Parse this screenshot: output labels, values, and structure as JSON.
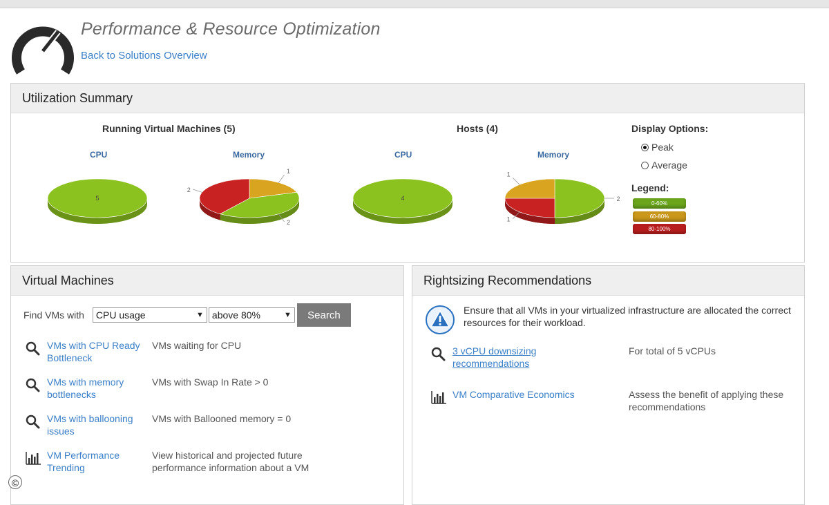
{
  "header": {
    "title": "Performance & Resource Optimization",
    "back_link": "Back to Solutions Overview"
  },
  "utilization": {
    "title": "Utilization Summary",
    "vm_group_title": "Running Virtual Machines (5)",
    "host_group_title": "Hosts (4)",
    "display_options_title": "Display Options:",
    "options": [
      {
        "label": "Peak",
        "checked": true
      },
      {
        "label": "Average",
        "checked": false
      }
    ],
    "legend_title": "Legend:",
    "legend": [
      {
        "label": "0-60%",
        "color": "#6aa51c"
      },
      {
        "label": "60-80%",
        "color": "#c9971a"
      },
      {
        "label": "80-100%",
        "color": "#b81d1d"
      }
    ]
  },
  "chart_data": [
    {
      "type": "pie",
      "title": "CPU",
      "categories": [
        "0-60%"
      ],
      "values": [
        5
      ],
      "colors": [
        "#8cc21f"
      ],
      "slice_labels": [
        "5"
      ]
    },
    {
      "type": "pie",
      "title": "Memory",
      "categories": [
        "60-80%",
        "0-60%",
        "80-100%"
      ],
      "values": [
        1,
        2,
        2
      ],
      "colors": [
        "#d9a520",
        "#8cc21f",
        "#c92222"
      ],
      "slice_labels": [
        "1",
        "2",
        "2"
      ]
    },
    {
      "type": "pie",
      "title": "CPU",
      "categories": [
        "0-60%"
      ],
      "values": [
        4
      ],
      "colors": [
        "#8cc21f"
      ],
      "slice_labels": [
        "4"
      ]
    },
    {
      "type": "pie",
      "title": "Memory",
      "categories": [
        "0-60%",
        "80-100%",
        "60-80%"
      ],
      "values": [
        2,
        1,
        1
      ],
      "colors": [
        "#8cc21f",
        "#c92222",
        "#d9a520"
      ],
      "slice_labels": [
        "2",
        "1",
        "1"
      ]
    }
  ],
  "vms": {
    "title": "Virtual Machines",
    "find_label": "Find VMs with",
    "metric_select": "CPU usage",
    "threshold_select": "above 80%",
    "search_button": "Search",
    "rows": [
      {
        "icon": "magnifier-icon",
        "link": "VMs with CPU Ready Bottleneck",
        "desc": "VMs waiting for CPU"
      },
      {
        "icon": "magnifier-icon",
        "link": "VMs with memory bottlenecks",
        "desc": "VMs with Swap In Rate > 0"
      },
      {
        "icon": "magnifier-icon",
        "link": "VMs with ballooning issues",
        "desc": "VMs with Ballooned memory = 0"
      },
      {
        "icon": "bar-chart-icon",
        "link": "VM Performance Trending",
        "desc": "View historical and projected future performance information about a VM"
      }
    ]
  },
  "rightsizing": {
    "title": "Rightsizing Recommendations",
    "info": "Ensure that all VMs in your virtualized infrastructure are allocated the correct resources for their workload.",
    "rows": [
      {
        "icon": "magnifier-icon",
        "link": "3 vCPU downsizing recommendations",
        "desc": "For total of 5 vCPUs"
      },
      {
        "icon": "bar-chart-icon",
        "link": "VM Comparative Economics",
        "desc": "Assess the benefit of applying these recommendations"
      }
    ]
  },
  "footer": {
    "copyright": "©"
  }
}
